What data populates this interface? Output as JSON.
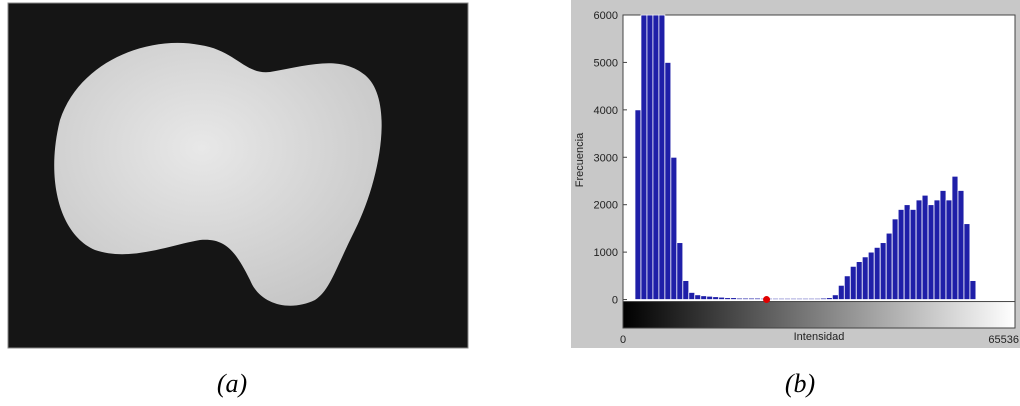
{
  "panel_a": {
    "caption": "(a)"
  },
  "chart_data": {
    "type": "histogram",
    "caption": "(b)",
    "xlabel": "Intensidad",
    "ylabel": "Frecuencia",
    "bins": [
      0,
      1000,
      2000,
      3000,
      4000,
      5000,
      6000,
      7000,
      8000,
      9000,
      10000,
      11000,
      12000,
      13000,
      14000,
      15000,
      16000,
      17000,
      18000,
      19000,
      20000,
      21000,
      22000,
      23000,
      24000,
      25000,
      26000,
      27000,
      28000,
      29000,
      30000,
      31000,
      32000,
      33000,
      34000,
      35000,
      36000,
      37000,
      38000,
      39000,
      40000,
      41000,
      42000,
      43000,
      44000,
      45000,
      46000,
      47000,
      48000,
      49000,
      50000,
      51000,
      52000,
      53000,
      54000,
      55000,
      56000,
      57000,
      58000,
      59000,
      60000
    ],
    "values": [
      0,
      0,
      4000,
      6000,
      6000,
      6000,
      6000,
      5000,
      3000,
      1200,
      400,
      150,
      100,
      80,
      70,
      60,
      50,
      40,
      40,
      30,
      30,
      30,
      30,
      25,
      25,
      25,
      25,
      25,
      25,
      25,
      25,
      25,
      25,
      30,
      40,
      100,
      300,
      500,
      700,
      800,
      900,
      1000,
      1100,
      1200,
      1400,
      1700,
      1900,
      2000,
      1900,
      2100,
      2200,
      2000,
      2100,
      2300,
      2100,
      2600,
      2300,
      1600,
      400,
      0
    ],
    "color": "#1f1fa8",
    "marker": {
      "x": 24000,
      "y": 0,
      "color": "#e00000"
    },
    "xlim": [
      0,
      65536
    ],
    "xticks": [
      0,
      65536
    ],
    "ylim": [
      -600,
      6000
    ],
    "yticks": [
      0,
      1000,
      2000,
      3000,
      4000,
      5000,
      6000
    ]
  }
}
